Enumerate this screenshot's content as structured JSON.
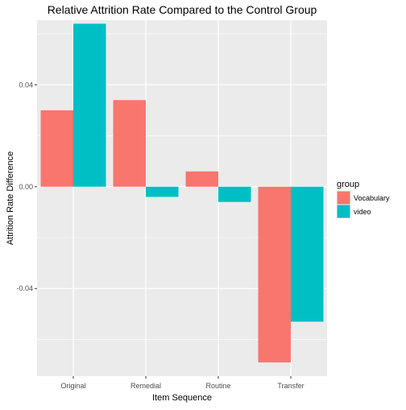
{
  "chart_data": {
    "type": "bar",
    "title": "Relative Attrition Rate Compared to the Control Group",
    "xlabel": "Item Sequence",
    "ylabel": "Attrition Rate Difference",
    "categories": [
      "Original",
      "Remedial",
      "Routine",
      "Transfer"
    ],
    "series": [
      {
        "name": "Vocabulary",
        "color": "#F8766D",
        "values": [
          0.03,
          0.034,
          0.006,
          -0.069
        ]
      },
      {
        "name": "video",
        "color": "#00BFC4",
        "values": [
          0.064,
          -0.004,
          -0.006,
          -0.053
        ]
      }
    ],
    "y_ticks": [
      -0.04,
      0.0,
      0.04
    ],
    "y_tick_labels": [
      "-0.04",
      "0.00",
      "0.04"
    ],
    "ylim": [
      -0.0744,
      0.0654
    ],
    "legend": {
      "title": "group",
      "position": "right"
    },
    "grid": true,
    "background": "#EBEBEB"
  }
}
